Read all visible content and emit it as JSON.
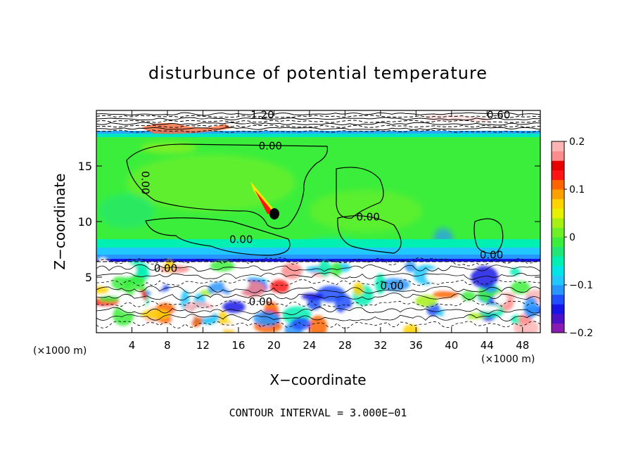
{
  "chart_data": {
    "type": "heatmap",
    "title": "disturbunce of potential temperature",
    "xlabel": "X−coordinate",
    "ylabel": "Z−coordinate",
    "x_unit": "(×1000 m)",
    "z_unit": "(×1000 m)",
    "xlim": [
      0,
      50
    ],
    "ylim": [
      0,
      20
    ],
    "x_ticks": [
      4,
      8,
      12,
      16,
      20,
      24,
      28,
      32,
      36,
      40,
      44,
      48
    ],
    "y_ticks": [
      5,
      10,
      15
    ],
    "colorbar": {
      "range": [
        -0.2,
        0.2
      ],
      "tick_values": [
        0.2,
        0.1,
        0,
        -0.1,
        -0.2
      ],
      "tick_labels": [
        "0.2",
        "0.1",
        "0",
        "−0.1",
        "−0.2"
      ],
      "colors": [
        "#8a1ab4",
        "#4b12c8",
        "#1414e6",
        "#1e50ff",
        "#2896ff",
        "#20c8ff",
        "#00e6e6",
        "#00f0b4",
        "#20e678",
        "#3cee3c",
        "#6ef028",
        "#a6f014",
        "#e6f000",
        "#ffd200",
        "#ffa000",
        "#ff6400",
        "#ff1414",
        "#e60000",
        "#ff8c8c",
        "#ffb4b4"
      ]
    },
    "contour_labels": [
      {
        "text": "0.00",
        "x": 19.6,
        "z": 16.8
      },
      {
        "text": "0.00",
        "x": 5.5,
        "z": 13.5
      },
      {
        "text": "0.00",
        "x": 30.6,
        "z": 10.4
      },
      {
        "text": "0.00",
        "x": 16.3,
        "z": 8.4
      },
      {
        "text": "0.00",
        "x": 44.5,
        "z": 7.0
      },
      {
        "text": "0.00",
        "x": 7.8,
        "z": 5.8
      },
      {
        "text": "0.00",
        "x": 33.3,
        "z": 4.2
      },
      {
        "text": "0.00",
        "x": 18.5,
        "z": 2.8
      },
      {
        "text": "1.20",
        "x": 18.7,
        "z": 19.6
      },
      {
        "text": "0.60",
        "x": 45.3,
        "z": 19.6
      }
    ],
    "footer": "CONTOUR INTERVAL = 3.000E−01"
  }
}
